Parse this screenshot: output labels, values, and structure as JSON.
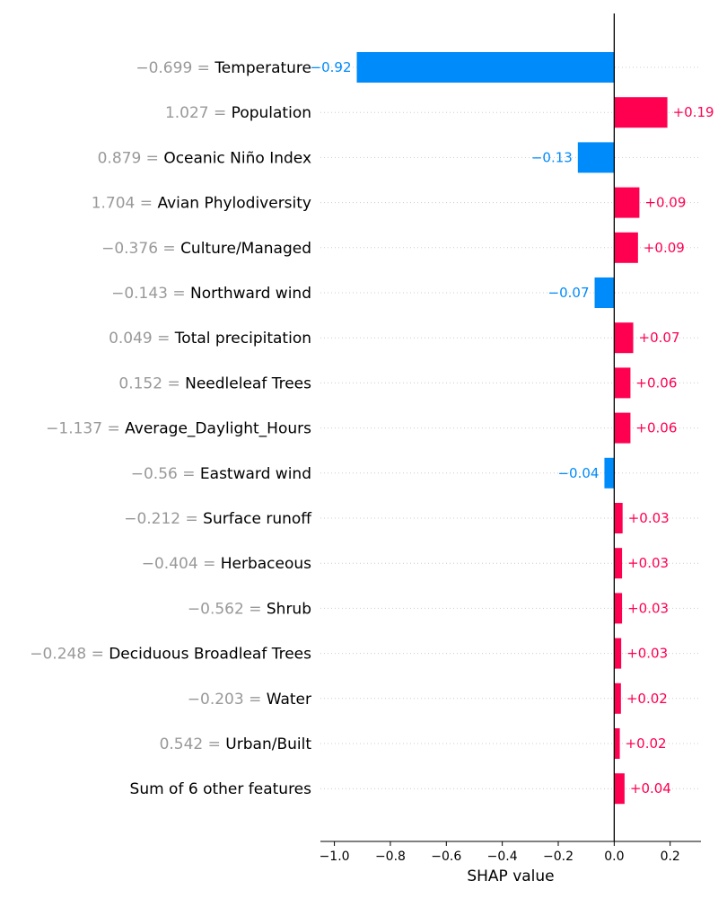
{
  "chart_data": {
    "type": "bar",
    "orientation": "horizontal",
    "title": "",
    "xlabel": "SHAP value",
    "ylabel": "",
    "xlim": [
      -1.05,
      0.31
    ],
    "grid": false,
    "colors": {
      "positive": "#ff0051",
      "negative": "#008bfb",
      "feature_value": "#999999",
      "zero_line": "#000000",
      "row_guide": "#cccccc"
    },
    "x_ticks": [
      -1.0,
      -0.8,
      -0.6,
      -0.4,
      -0.2,
      0.0,
      0.2
    ],
    "x_tick_labels": [
      "−1.0",
      "−0.8",
      "−0.6",
      "−0.4",
      "−0.2",
      "0.0",
      "0.2"
    ],
    "rows": [
      {
        "feature": "Temperature",
        "feature_value": "−0.699 =",
        "value": -0.92,
        "label": "−0.92"
      },
      {
        "feature": "Population",
        "feature_value": "1.027 =",
        "value": 0.19,
        "label": "+0.19"
      },
      {
        "feature": "Oceanic Niño Index",
        "feature_value": "0.879 =",
        "value": -0.13,
        "label": "−0.13"
      },
      {
        "feature": "Avian Phylodiversity",
        "feature_value": "1.704 =",
        "value": 0.09,
        "label": "+0.09"
      },
      {
        "feature": "Culture/Managed",
        "feature_value": "−0.376 =",
        "value": 0.085,
        "label": "+0.09"
      },
      {
        "feature": "Northward wind",
        "feature_value": "−0.143 =",
        "value": -0.07,
        "label": "−0.07"
      },
      {
        "feature": "Total precipitation",
        "feature_value": "0.049 =",
        "value": 0.068,
        "label": "+0.07"
      },
      {
        "feature": "Needleleaf Trees",
        "feature_value": "0.152 =",
        "value": 0.058,
        "label": "+0.06"
      },
      {
        "feature": "Average_Daylight_Hours",
        "feature_value": "−1.137 =",
        "value": 0.058,
        "label": "+0.06"
      },
      {
        "feature": "Eastward wind",
        "feature_value": "−0.56 =",
        "value": -0.035,
        "label": "−0.04"
      },
      {
        "feature": "Surface runoff",
        "feature_value": "−0.212 =",
        "value": 0.03,
        "label": "+0.03"
      },
      {
        "feature": "Herbaceous",
        "feature_value": "−0.404 =",
        "value": 0.028,
        "label": "+0.03"
      },
      {
        "feature": "Shrub",
        "feature_value": "−0.562 =",
        "value": 0.028,
        "label": "+0.03"
      },
      {
        "feature": "Deciduous Broadleaf Trees",
        "feature_value": "−0.248 =",
        "value": 0.025,
        "label": "+0.03"
      },
      {
        "feature": "Water",
        "feature_value": "−0.203 =",
        "value": 0.024,
        "label": "+0.02"
      },
      {
        "feature": "Urban/Built",
        "feature_value": "0.542 =",
        "value": 0.02,
        "label": "+0.02"
      },
      {
        "feature": "Sum of 6 other features",
        "feature_value": "",
        "value": 0.037,
        "label": "+0.04"
      }
    ]
  }
}
